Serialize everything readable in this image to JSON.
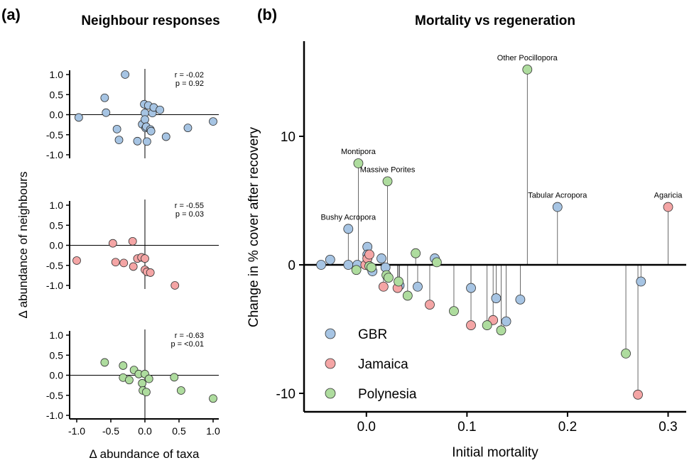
{
  "panel_a": {
    "tag": "(a)",
    "title": "Neighbour responses",
    "ylabel": "Δ abundance of neighbours",
    "xlabel": "Δ abundance of taxa"
  },
  "panel_b": {
    "tag": "(b)",
    "title": "Mortality vs regeneration",
    "ylabel": "Change in % cover after recovery",
    "xlabel": "Initial mortality"
  },
  "colors": {
    "GBR": "#a6c4e3",
    "Jamaica": "#f4a5a5",
    "Polynesia": "#aedc9e"
  },
  "chart_data": [
    {
      "type": "scatter",
      "name": "GBR",
      "xlabel": "",
      "ylabel": "",
      "xlim": [
        -1.1,
        1.1
      ],
      "ylim": [
        -1.1,
        1.1
      ],
      "xticks": [
        "-1.0",
        "-0.5",
        "0.0",
        "0.5",
        "1.0"
      ],
      "yticks": [
        "-1.0",
        "-0.5",
        "0.0",
        "0.5",
        "1.0"
      ],
      "stats": [
        "r = -0.02",
        "p = 0.92"
      ],
      "color": "#a6c4e3",
      "points": [
        {
          "x": -0.97,
          "y": -0.07
        },
        {
          "x": -0.59,
          "y": 0.42
        },
        {
          "x": -0.57,
          "y": 0.05
        },
        {
          "x": -0.41,
          "y": -0.36
        },
        {
          "x": -0.38,
          "y": -0.63
        },
        {
          "x": -0.29,
          "y": 1.0
        },
        {
          "x": -0.11,
          "y": -0.66
        },
        {
          "x": -0.04,
          "y": -0.24
        },
        {
          "x": -0.01,
          "y": 0.26
        },
        {
          "x": 0.0,
          "y": 0.04
        },
        {
          "x": 0.0,
          "y": -0.12
        },
        {
          "x": 0.01,
          "y": -0.33
        },
        {
          "x": 0.02,
          "y": -0.3
        },
        {
          "x": 0.03,
          "y": -0.67
        },
        {
          "x": 0.05,
          "y": 0.23
        },
        {
          "x": 0.08,
          "y": -0.37
        },
        {
          "x": 0.09,
          "y": -0.41
        },
        {
          "x": 0.11,
          "y": 0.04
        },
        {
          "x": 0.13,
          "y": 0.18
        },
        {
          "x": 0.22,
          "y": 0.12
        },
        {
          "x": 0.31,
          "y": -0.55
        },
        {
          "x": 0.63,
          "y": -0.33
        },
        {
          "x": 1.0,
          "y": -0.17
        }
      ]
    },
    {
      "type": "scatter",
      "name": "Jamaica",
      "xlabel": "",
      "ylabel": "",
      "xlim": [
        -1.1,
        1.1
      ],
      "ylim": [
        -1.1,
        1.1
      ],
      "xticks": [
        "-1.0",
        "-0.5",
        "0.0",
        "0.5",
        "1.0"
      ],
      "yticks": [
        "-1.0",
        "-0.5",
        "0.0",
        "0.5",
        "1.0"
      ],
      "stats": [
        "r = -0.55",
        "p = 0.03"
      ],
      "color": "#f4a5a5",
      "points": [
        {
          "x": -1.0,
          "y": -0.38
        },
        {
          "x": -0.47,
          "y": 0.05
        },
        {
          "x": -0.43,
          "y": -0.42
        },
        {
          "x": -0.31,
          "y": -0.44
        },
        {
          "x": -0.18,
          "y": 0.1
        },
        {
          "x": -0.17,
          "y": -0.53
        },
        {
          "x": -0.11,
          "y": -0.33
        },
        {
          "x": -0.05,
          "y": -0.3
        },
        {
          "x": 0.0,
          "y": -0.33
        },
        {
          "x": 0.0,
          "y": -0.61
        },
        {
          "x": 0.03,
          "y": -0.66
        },
        {
          "x": 0.08,
          "y": -0.68
        },
        {
          "x": 0.44,
          "y": -1.0
        }
      ]
    },
    {
      "type": "scatter",
      "name": "Polynesia",
      "xlabel": "",
      "ylabel": "",
      "xlim": [
        -1.1,
        1.1
      ],
      "ylim": [
        -1.1,
        1.1
      ],
      "xticks": [
        "-1.0",
        "-0.5",
        "0.0",
        "0.5",
        "1.0"
      ],
      "yticks": [
        "-1.0",
        "-0.5",
        "0.0",
        "0.5",
        "1.0"
      ],
      "stats": [
        "r = -0.63",
        "p = <0.01"
      ],
      "color": "#aedc9e",
      "points": [
        {
          "x": -0.59,
          "y": 0.32
        },
        {
          "x": -0.32,
          "y": 0.24
        },
        {
          "x": -0.32,
          "y": -0.06
        },
        {
          "x": -0.23,
          "y": -0.12
        },
        {
          "x": -0.16,
          "y": 0.13
        },
        {
          "x": -0.09,
          "y": 0.03
        },
        {
          "x": -0.04,
          "y": -0.2
        },
        {
          "x": -0.03,
          "y": -0.38
        },
        {
          "x": 0.0,
          "y": 0.03
        },
        {
          "x": 0.02,
          "y": -0.42
        },
        {
          "x": 0.06,
          "y": -0.09
        },
        {
          "x": 0.43,
          "y": -0.05
        },
        {
          "x": 0.53,
          "y": -0.38
        },
        {
          "x": 1.0,
          "y": -0.58
        }
      ]
    },
    {
      "type": "scatter",
      "name": "Mortality vs regeneration",
      "xlim": [
        -0.062,
        0.318
      ],
      "ylim": [
        -11.3,
        17.5
      ],
      "xticks": [
        "0.0",
        "0.1",
        "0.2",
        "0.3"
      ],
      "yticks": [
        "-10",
        "0",
        "10"
      ],
      "baseline": 0,
      "legend": [
        "GBR",
        "Jamaica",
        "Polynesia"
      ],
      "legend_position": "bottom-left",
      "points": [
        {
          "x": -0.045,
          "y": 0.0,
          "group": "GBR"
        },
        {
          "x": -0.036,
          "y": 0.4,
          "group": "GBR"
        },
        {
          "x": -0.018,
          "y": 0.0,
          "group": "GBR"
        },
        {
          "x": -0.018,
          "y": 2.8,
          "group": "GBR",
          "label": "Bushy Acropora"
        },
        {
          "x": -0.009,
          "y": 0.0,
          "group": "GBR"
        },
        {
          "x": 0.001,
          "y": 1.4,
          "group": "GBR"
        },
        {
          "x": 0.001,
          "y": 0.8,
          "group": "GBR"
        },
        {
          "x": 0.006,
          "y": -0.5,
          "group": "GBR"
        },
        {
          "x": 0.015,
          "y": 0.5,
          "group": "GBR"
        },
        {
          "x": 0.019,
          "y": -0.2,
          "group": "GBR"
        },
        {
          "x": 0.033,
          "y": -1.6,
          "group": "GBR"
        },
        {
          "x": 0.051,
          "y": -1.7,
          "group": "GBR"
        },
        {
          "x": 0.068,
          "y": 0.5,
          "group": "GBR"
        },
        {
          "x": 0.104,
          "y": -1.8,
          "group": "GBR"
        },
        {
          "x": 0.129,
          "y": -2.6,
          "group": "GBR"
        },
        {
          "x": 0.139,
          "y": -4.4,
          "group": "GBR"
        },
        {
          "x": 0.153,
          "y": -2.7,
          "group": "GBR"
        },
        {
          "x": 0.19,
          "y": 4.5,
          "group": "GBR",
          "label": "Tabular Acropora"
        },
        {
          "x": 0.273,
          "y": -1.3,
          "group": "GBR"
        },
        {
          "x": -0.001,
          "y": 0.0,
          "group": "Jamaica"
        },
        {
          "x": 0.001,
          "y": 0.5,
          "group": "Jamaica"
        },
        {
          "x": 0.003,
          "y": 0.8,
          "group": "Jamaica"
        },
        {
          "x": 0.017,
          "y": -1.7,
          "group": "Jamaica"
        },
        {
          "x": 0.031,
          "y": -1.8,
          "group": "Jamaica"
        },
        {
          "x": 0.063,
          "y": -3.1,
          "group": "Jamaica"
        },
        {
          "x": 0.104,
          "y": -4.7,
          "group": "Jamaica"
        },
        {
          "x": 0.126,
          "y": -4.3,
          "group": "Jamaica"
        },
        {
          "x": 0.27,
          "y": -10.1,
          "group": "Jamaica"
        },
        {
          "x": 0.3,
          "y": 4.5,
          "group": "Jamaica",
          "label": "Agaricia"
        },
        {
          "x": -0.01,
          "y": -0.4,
          "group": "Polynesia"
        },
        {
          "x": -0.008,
          "y": 7.9,
          "group": "Polynesia",
          "label": "Montipora"
        },
        {
          "x": 0.003,
          "y": -0.1,
          "group": "Polynesia"
        },
        {
          "x": 0.005,
          "y": -0.2,
          "group": "Polynesia"
        },
        {
          "x": 0.02,
          "y": -0.8,
          "group": "Polynesia"
        },
        {
          "x": 0.021,
          "y": 6.5,
          "group": "Polynesia",
          "label": "Massive Porites"
        },
        {
          "x": 0.022,
          "y": -1.0,
          "group": "Polynesia"
        },
        {
          "x": 0.032,
          "y": -1.3,
          "group": "Polynesia"
        },
        {
          "x": 0.041,
          "y": -2.4,
          "group": "Polynesia"
        },
        {
          "x": 0.049,
          "y": 0.9,
          "group": "Polynesia"
        },
        {
          "x": 0.07,
          "y": 0.2,
          "group": "Polynesia"
        },
        {
          "x": 0.087,
          "y": -3.6,
          "group": "Polynesia"
        },
        {
          "x": 0.12,
          "y": -4.7,
          "group": "Polynesia"
        },
        {
          "x": 0.134,
          "y": -5.1,
          "group": "Polynesia"
        },
        {
          "x": 0.16,
          "y": 15.2,
          "group": "Polynesia",
          "label": "Other Pocillopora"
        },
        {
          "x": 0.258,
          "y": -6.9,
          "group": "Polynesia"
        }
      ]
    }
  ]
}
